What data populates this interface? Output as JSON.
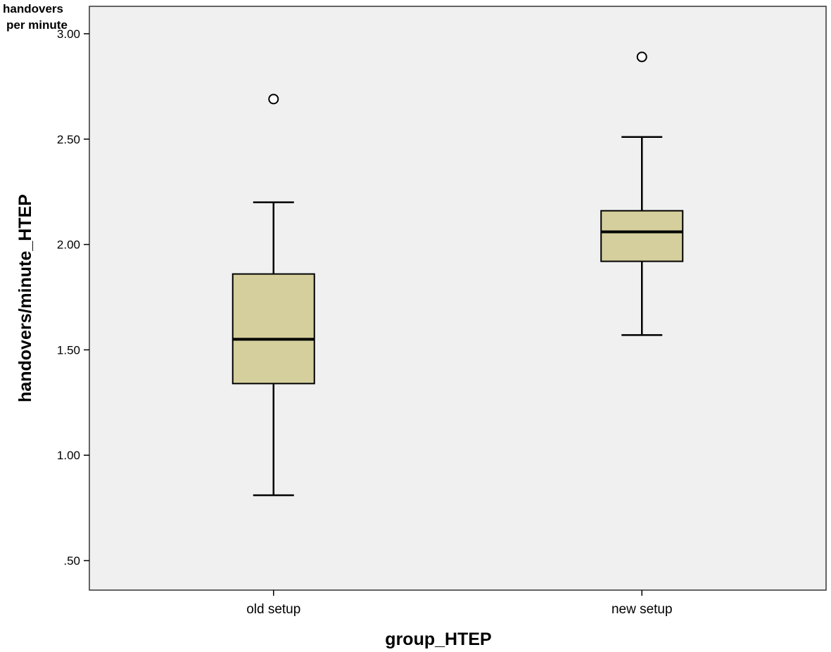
{
  "corner_label": {
    "line1": "handovers",
    "line2": "per minute"
  },
  "chart_data": {
    "type": "boxplot",
    "title": "",
    "xlabel": "group_HTEP",
    "ylabel": "handovers/minute_HTEP",
    "ylim": [
      0.36,
      3.13
    ],
    "yticks": [
      0.5,
      1.0,
      1.5,
      2.0,
      2.5,
      3.0
    ],
    "ytick_labels": [
      ".50",
      "1.00",
      "1.50",
      "2.00",
      "2.50",
      "3.00"
    ],
    "categories": [
      "old setup",
      "new setup"
    ],
    "grid": false,
    "plot_background": "#f0f0f0",
    "box_fill": "#d4cf9c",
    "box_stroke": "#000000",
    "boxes": [
      {
        "category": "old setup",
        "whisker_low": 0.81,
        "q1": 1.34,
        "median": 1.55,
        "q3": 1.86,
        "whisker_high": 2.2,
        "outliers": [
          2.69
        ]
      },
      {
        "category": "new setup",
        "whisker_low": 1.57,
        "q1": 1.92,
        "median": 2.06,
        "q3": 2.16,
        "whisker_high": 2.51,
        "outliers": [
          2.89
        ]
      }
    ]
  }
}
